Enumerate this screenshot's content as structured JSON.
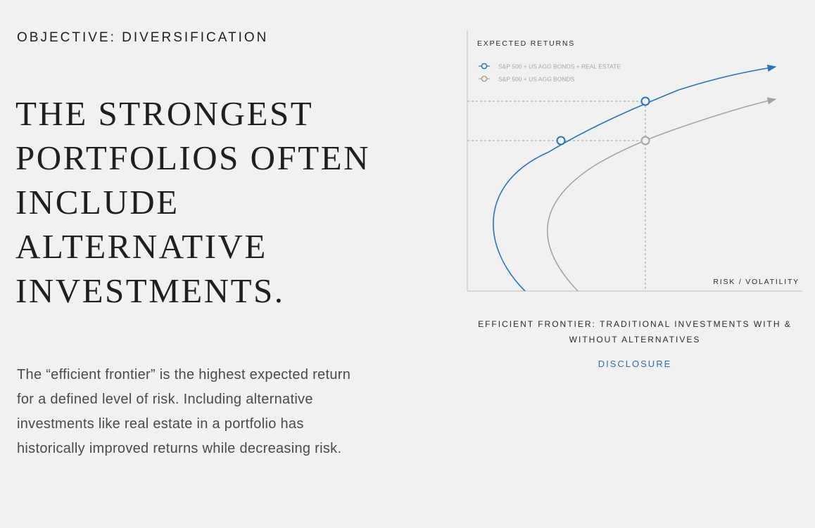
{
  "section": {
    "eyebrow": "OBJECTIVE: DIVERSIFICATION",
    "headline_lines": [
      "THE STRONGEST",
      "PORTFOLIOS OFTEN",
      "INCLUDE",
      "ALTERNATIVE",
      "INVESTMENTS."
    ],
    "body": "The “efficient frontier” is the highest expected return for a defined level of risk. Including alternative investments like real estate in a portfolio has historically improved returns while decreasing risk."
  },
  "chart_data": {
    "type": "line",
    "ylabel": "EXPECTED RETURNS",
    "xlabel": "RISK / VOLATILITY",
    "legend_position": "top-left",
    "series": [
      {
        "name": "S&P 500 + US AGG BONDS + REAL ESTATE",
        "color": "#2a73b8"
      },
      {
        "name": "S&P 500 + US AGG BONDS",
        "color": "#a3a3a3"
      }
    ]
  },
  "caption": "EFFICIENT FRONTIER: TRADITIONAL INVESTMENTS WITH & WITHOUT ALTERNATIVES",
  "disclosure_label": "DISCLOSURE",
  "colors": {
    "accent": "#2a73b8",
    "muted": "#a3a3a3",
    "background": "#f1f1f1"
  }
}
